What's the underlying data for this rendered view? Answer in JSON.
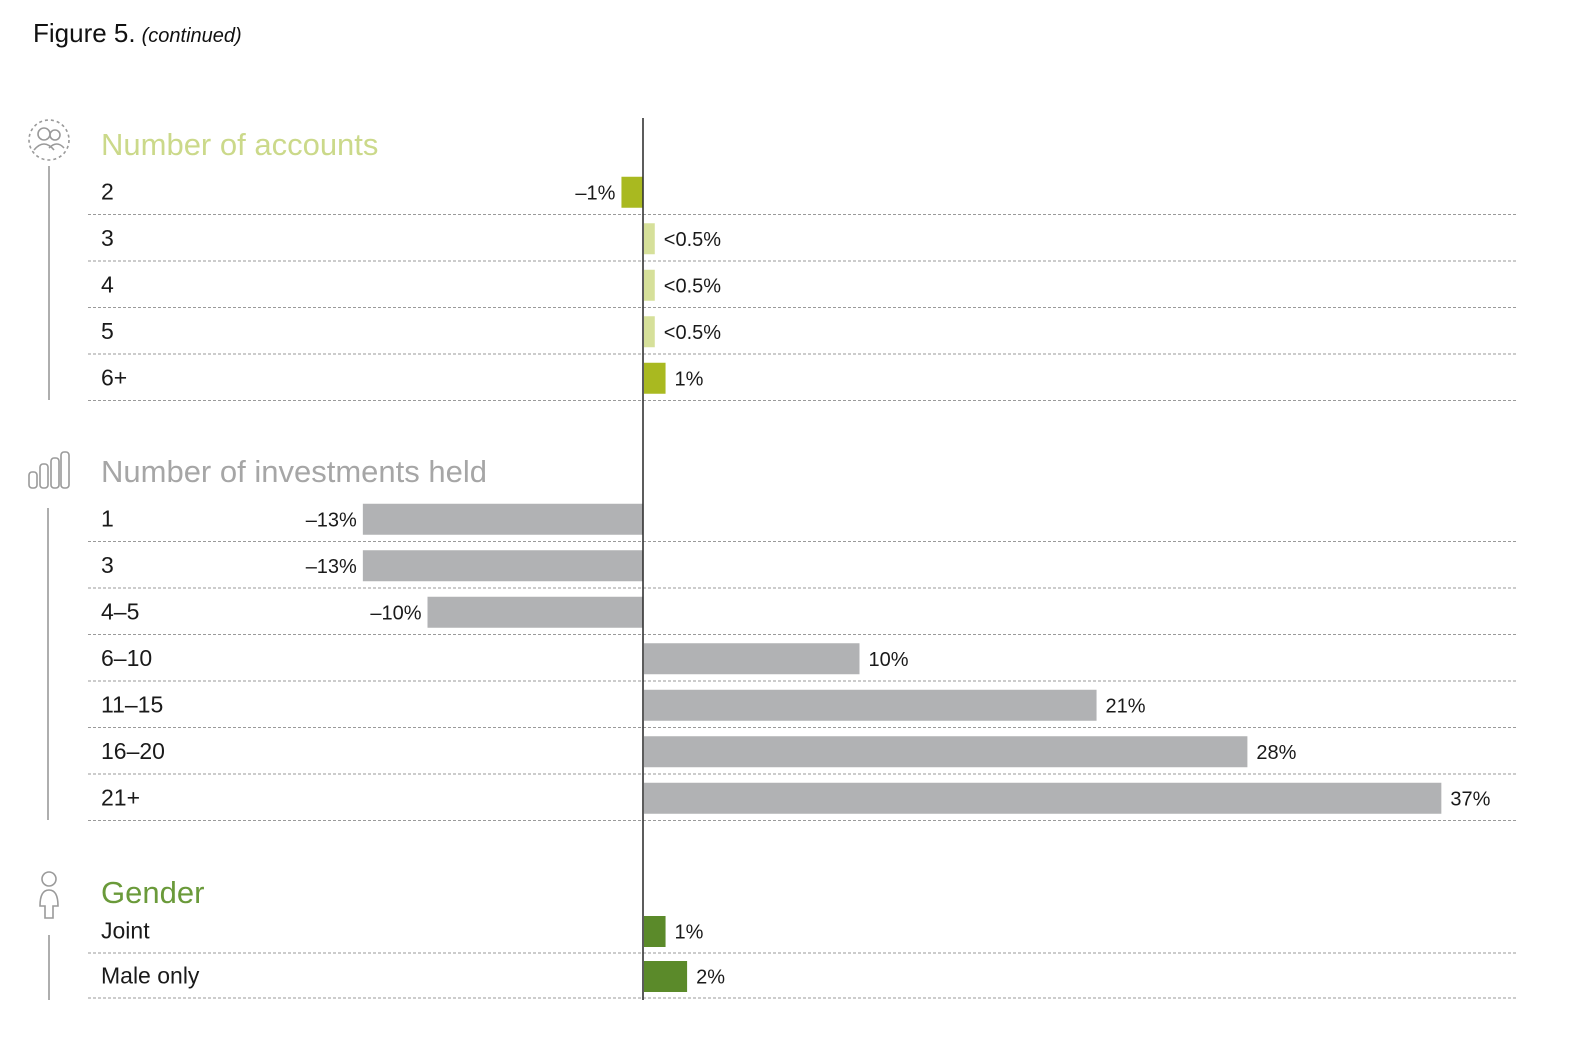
{
  "figure": {
    "title": "Figure 5.",
    "subtitle": "(continued)"
  },
  "chart_data": {
    "type": "bar",
    "orientation": "horizontal",
    "xlim": [
      -15,
      40
    ],
    "units": "%",
    "sections": [
      {
        "title": "Number of accounts",
        "icon": "people-group-icon",
        "title_color": "#cbd98a",
        "rows": [
          {
            "category": "2",
            "value": -1,
            "label": "–1%",
            "color": "#a9b920"
          },
          {
            "category": "3",
            "value": 0.5,
            "label": "<0.5%",
            "color": "#d6e09a"
          },
          {
            "category": "4",
            "value": 0.5,
            "label": "<0.5%",
            "color": "#d6e09a"
          },
          {
            "category": "5",
            "value": 0.5,
            "label": "<0.5%",
            "color": "#d6e09a"
          },
          {
            "category": "6+",
            "value": 1,
            "label": "1%",
            "color": "#a9b920"
          }
        ]
      },
      {
        "title": "Number of investments held",
        "icon": "bar-chart-icon",
        "title_color": "#a6a6a6",
        "rows": [
          {
            "category": "1",
            "value": -13,
            "label": "–13%",
            "color": "#b1b2b4"
          },
          {
            "category": "3",
            "value": -13,
            "label": "–13%",
            "color": "#b1b2b4"
          },
          {
            "category": "4–5",
            "value": -10,
            "label": "–10%",
            "color": "#b1b2b4"
          },
          {
            "category": "6–10",
            "value": 10,
            "label": "10%",
            "color": "#b1b2b4"
          },
          {
            "category": "11–15",
            "value": 21,
            "label": "21%",
            "color": "#b1b2b4"
          },
          {
            "category": "16–20",
            "value": 28,
            "label": "28%",
            "color": "#b1b2b4"
          },
          {
            "category": "21+",
            "value": 37,
            "label": "37%",
            "color": "#b1b2b4"
          }
        ]
      },
      {
        "title": "Gender",
        "icon": "person-icon",
        "title_color": "#6a9a3a",
        "rows": [
          {
            "category": "Joint",
            "value": 1,
            "label": "1%",
            "color": "#5b8a2a"
          },
          {
            "category": "Male only",
            "value": 2,
            "label": "2%",
            "color": "#5b8a2a"
          }
        ]
      }
    ]
  }
}
